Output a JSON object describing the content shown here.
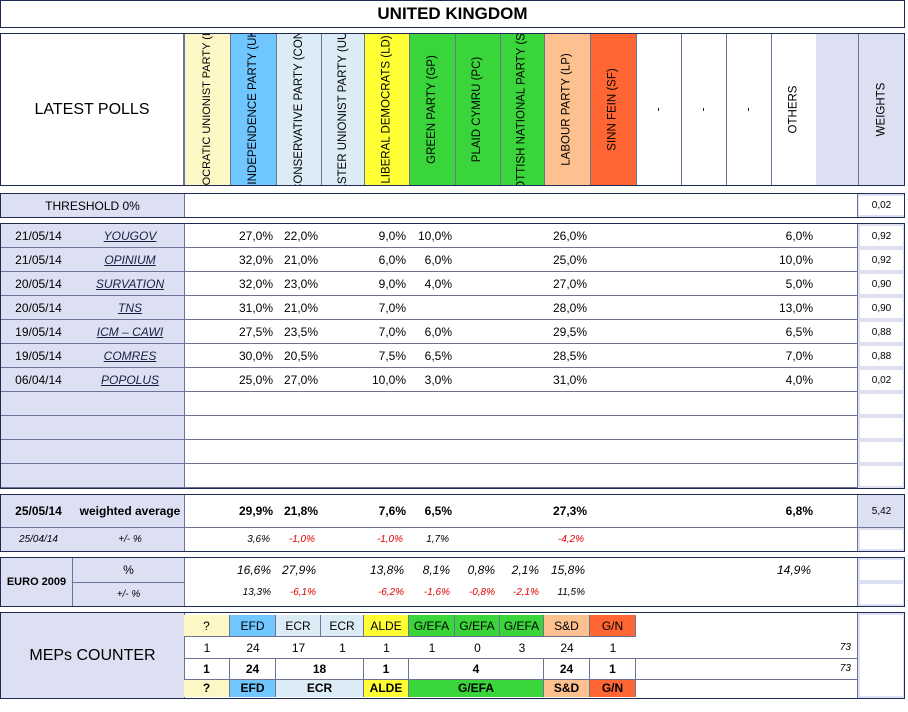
{
  "title": "UNITED KINGDOM",
  "latest_polls_label": "LATEST POLLS",
  "weights_label": "WEIGHTS",
  "parties": [
    {
      "name": "DEMOCRATIC UNIONIST PARTY (DUP)",
      "color": "#fdf7c6"
    },
    {
      "name": "UK INDEPENDENCE PARTY (UKIP)",
      "color": "#70c6ff"
    },
    {
      "name": "CONSERVATIVE PARTY (CON)",
      "color": "#dcecf7"
    },
    {
      "name": "ULSTER UNIONIST PARTY (UUP)",
      "color": "#dcecf7"
    },
    {
      "name": "LIBERAL DEMOCRATS (LD)",
      "color": "#ffff33"
    },
    {
      "name": "GREEN PARTY (GP)",
      "color": "#3ad53a"
    },
    {
      "name": "PLAID CYMRU (PC)",
      "color": "#3ad53a"
    },
    {
      "name": "SCOTTISH NATIONAL PARTY (SNP)",
      "color": "#3ad53a"
    },
    {
      "name": "LABOUR PARTY (LP)",
      "color": "#fdc08f"
    },
    {
      "name": "SINN FEIN (SF)",
      "color": "#ff6633"
    },
    {
      "name": "-",
      "color": "#ffffff"
    },
    {
      "name": "-",
      "color": "#ffffff"
    },
    {
      "name": "-",
      "color": "#ffffff"
    },
    {
      "name": "OTHERS",
      "color": "#ffffff"
    }
  ],
  "threshold": {
    "label": "THRESHOLD 0%",
    "weight": "0,02"
  },
  "polls": [
    {
      "date": "21/05/14",
      "pollster": "YOUGOV",
      "values": [
        "",
        "27,0%",
        "22,0%",
        "",
        "9,0%",
        "10,0%",
        "",
        "",
        "26,0%",
        "",
        "",
        "",
        "",
        "6,0%"
      ],
      "weight": "0,92"
    },
    {
      "date": "21/05/14",
      "pollster": "OPINIUM",
      "values": [
        "",
        "32,0%",
        "21,0%",
        "",
        "6,0%",
        "6,0%",
        "",
        "",
        "25,0%",
        "",
        "",
        "",
        "",
        "10,0%"
      ],
      "weight": "0,92"
    },
    {
      "date": "20/05/14",
      "pollster": "SURVATION",
      "values": [
        "",
        "32,0%",
        "23,0%",
        "",
        "9,0%",
        "4,0%",
        "",
        "",
        "27,0%",
        "",
        "",
        "",
        "",
        "5,0%"
      ],
      "weight": "0,90"
    },
    {
      "date": "20/05/14",
      "pollster": "TNS",
      "values": [
        "",
        "31,0%",
        "21,0%",
        "",
        "7,0%",
        "",
        "",
        "",
        "28,0%",
        "",
        "",
        "",
        "",
        "13,0%"
      ],
      "weight": "0,90"
    },
    {
      "date": "19/05/14",
      "pollster": "ICM – CAWI",
      "values": [
        "",
        "27,5%",
        "23,5%",
        "",
        "7,0%",
        "6,0%",
        "",
        "",
        "29,5%",
        "",
        "",
        "",
        "",
        "6,5%"
      ],
      "weight": "0,88"
    },
    {
      "date": "19/05/14",
      "pollster": "COMRES",
      "values": [
        "",
        "30,0%",
        "20,5%",
        "",
        "7,5%",
        "6,5%",
        "",
        "",
        "28,5%",
        "",
        "",
        "",
        "",
        "7,0%"
      ],
      "weight": "0,88"
    },
    {
      "date": "06/04/14",
      "pollster": "POPOLUS",
      "values": [
        "",
        "25,0%",
        "27,0%",
        "",
        "10,0%",
        "3,0%",
        "",
        "",
        "31,0%",
        "",
        "",
        "",
        "",
        "4,0%"
      ],
      "weight": "0,02"
    }
  ],
  "weighted": {
    "date": "25/05/14",
    "label": "weighted average",
    "values": [
      "",
      "29,9%",
      "21,8%",
      "",
      "7,6%",
      "6,5%",
      "",
      "",
      "27,3%",
      "",
      "",
      "",
      "",
      "6,8%"
    ],
    "weight": "5,42"
  },
  "change": {
    "date": "25/04/14",
    "label": "+/- %",
    "values": [
      "",
      "3,6%",
      "-1,0%",
      "",
      "-1,0%",
      "1,7%",
      "",
      "",
      "-4,2%",
      "",
      "",
      "",
      "",
      ""
    ]
  },
  "euro2009": {
    "label": "EURO 2009",
    "pct_label": "%",
    "pm_label": "+/- %",
    "values": [
      "",
      "16,6%",
      "27,9%",
      "",
      "13,8%",
      "8,1%",
      "0,8%",
      "2,1%",
      "15,8%",
      "",
      "",
      "",
      "",
      "14,9%"
    ],
    "changes": [
      "",
      "13,3%",
      "-6,1%",
      "",
      "-6,2%",
      "-1,6%",
      "-0,8%",
      "-2,1%",
      "11,5%",
      "",
      "",
      "",
      "",
      ""
    ]
  },
  "meps": {
    "label": "MEPs COUNTER",
    "groups": [
      "?",
      "EFD",
      "ECR",
      "ECR",
      "ALDE",
      "G/EFA",
      "G/EFA",
      "G/EFA",
      "S&D",
      "G/N"
    ],
    "seats": [
      "1",
      "24",
      "17",
      "1",
      "1",
      "1",
      "0",
      "3",
      "24",
      "1"
    ],
    "total1": "73",
    "agg": [
      "1",
      "24",
      "18",
      "1",
      "4",
      "24",
      "1"
    ],
    "total2": "73",
    "agg_groups": [
      "?",
      "EFD",
      "ECR",
      "ALDE",
      "G/EFA",
      "S&D",
      "G/N"
    ]
  }
}
